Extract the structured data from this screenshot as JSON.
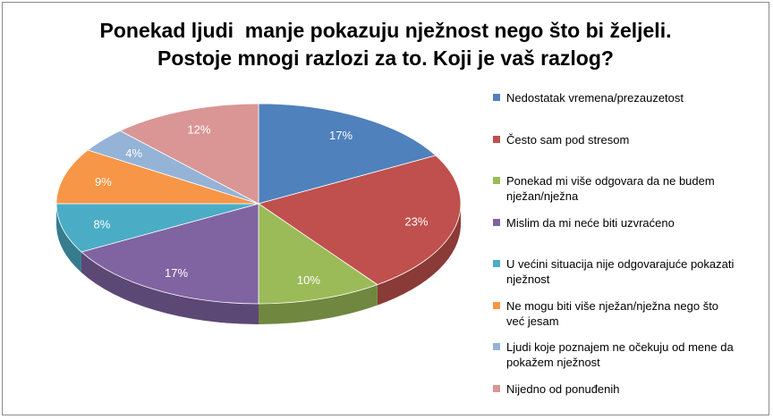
{
  "chart_data": {
    "type": "pie",
    "title_lines": [
      "Ponekad ljudi  manje pokazuju nježnost nego što bi željeli.",
      "Postoje mnogi razlozi za to. Koji je vaš razlog?"
    ],
    "legend_position": "right",
    "slices": [
      {
        "label": "Nedostatak vremena/prezauzetost",
        "value": 17,
        "value_label": "17%",
        "color": "#4f81bd"
      },
      {
        "label": "Često sam pod stresom",
        "value": 23,
        "value_label": "23%",
        "color": "#c0504d"
      },
      {
        "label": "Ponekad mi više odgovara da ne budem nježan/nježna",
        "value": 10,
        "value_label": "10%",
        "color": "#9bbb59"
      },
      {
        "label": "Mislim da mi neće biti uzvraćeno",
        "value": 17,
        "value_label": "17%",
        "color": "#8064a2"
      },
      {
        "label": "U većini situacija nije odgovarajuće pokazati nježnost",
        "value": 8,
        "value_label": "8%",
        "color": "#4bacc6"
      },
      {
        "label": "Ne mogu biti više nježan/nježna nego što već jesam",
        "value": 9,
        "value_label": "9%",
        "color": "#f79646"
      },
      {
        "label": "Ljudi koje poznajem ne očekuju od mene da pokažem nježnost",
        "value": 4,
        "value_label": "4%",
        "color": "#95b3d7"
      },
      {
        "label": "Nijedno od ponuđenih",
        "value": 12,
        "value_label": "12%",
        "color": "#d99694"
      }
    ]
  }
}
